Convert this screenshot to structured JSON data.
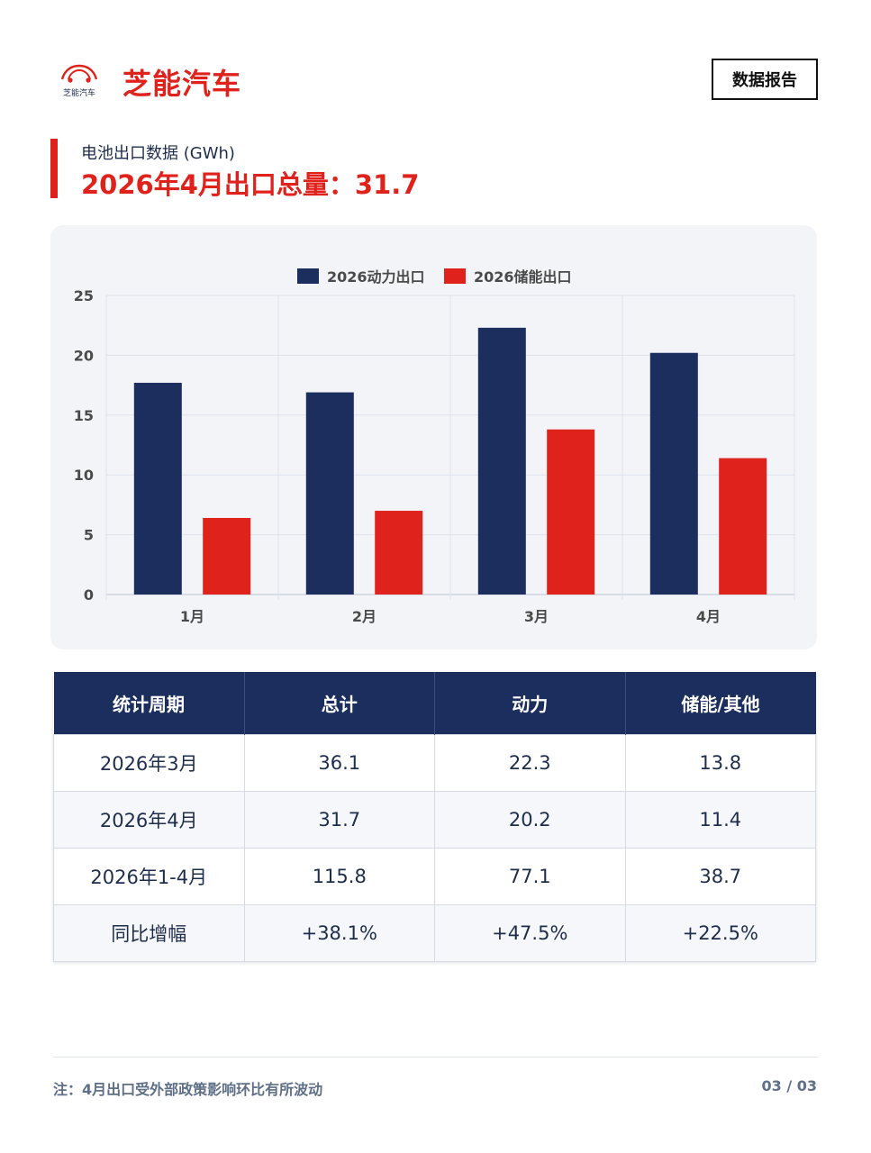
{
  "header": {
    "logo_small_text": "芝能汽车",
    "brand": "芝能汽车",
    "badge": "数据报告"
  },
  "title": {
    "subtitle": "电池出口数据 (GWh)",
    "main": "2026年4月出口总量：31.7"
  },
  "chart_data": {
    "type": "bar",
    "categories": [
      "1月",
      "2月",
      "3月",
      "4月"
    ],
    "series": [
      {
        "name": "2026动力出口",
        "values": [
          17.7,
          16.9,
          22.3,
          20.2
        ],
        "color": "#1b2e5e"
      },
      {
        "name": "2026储能出口",
        "values": [
          6.4,
          7.0,
          13.8,
          11.4
        ],
        "color": "#e0221c"
      }
    ],
    "ylim": [
      0,
      25
    ],
    "yticks": [
      0,
      5,
      10,
      15,
      20,
      25
    ],
    "legend": "top-center",
    "grid": true
  },
  "table": {
    "headers": [
      "统计周期",
      "总计",
      "动力",
      "储能/其他"
    ],
    "rows": [
      [
        "2026年3月",
        "36.1",
        "22.3",
        "13.8"
      ],
      [
        "2026年4月",
        "31.7",
        "20.2",
        "11.4"
      ],
      [
        "2026年1-4月",
        "115.8",
        "77.1",
        "38.7"
      ],
      [
        "同比增幅",
        "+38.1%",
        "+47.5%",
        "+22.5%"
      ]
    ]
  },
  "footer": {
    "note": "注：4月出口受外部政策影响环比有所波动",
    "page": "03 / 03"
  },
  "colors": {
    "accent": "#e0221c",
    "navy": "#1b2e5e"
  }
}
